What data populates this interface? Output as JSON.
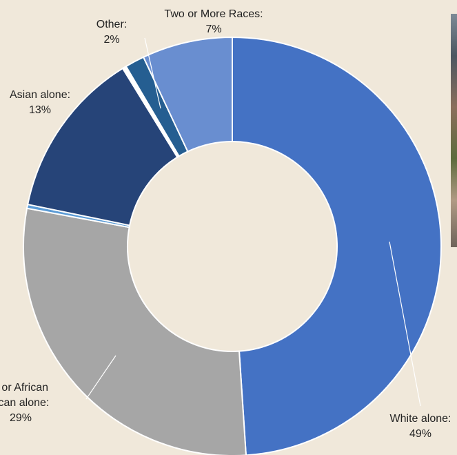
{
  "chart_data": {
    "type": "pie",
    "subtype": "donut",
    "start": "12 o'clock, clockwise",
    "slices": [
      {
        "label": "White alone",
        "value": 49,
        "display": "49%",
        "color": "#4472c4"
      },
      {
        "label": "Black or African American alone",
        "value": 29,
        "display": "29%",
        "color": "#a6a6a6",
        "label_lines": [
          "k or African",
          "rican alone:"
        ]
      },
      {
        "label": "Unlabeled",
        "value": 0.3,
        "display": "",
        "color": "#5b9bd5"
      },
      {
        "label": "Asian alone",
        "value": 13,
        "display": "13%",
        "color": "#264478"
      },
      {
        "label": "Unlabeled",
        "value": 0.3,
        "display": "",
        "color": "#ffffff"
      },
      {
        "label": "Other",
        "value": 1.5,
        "display": "2%",
        "color": "#255e91"
      },
      {
        "label": "Two or More Races",
        "value": 7,
        "display": "7%",
        "color": "#698ed0"
      }
    ]
  }
}
